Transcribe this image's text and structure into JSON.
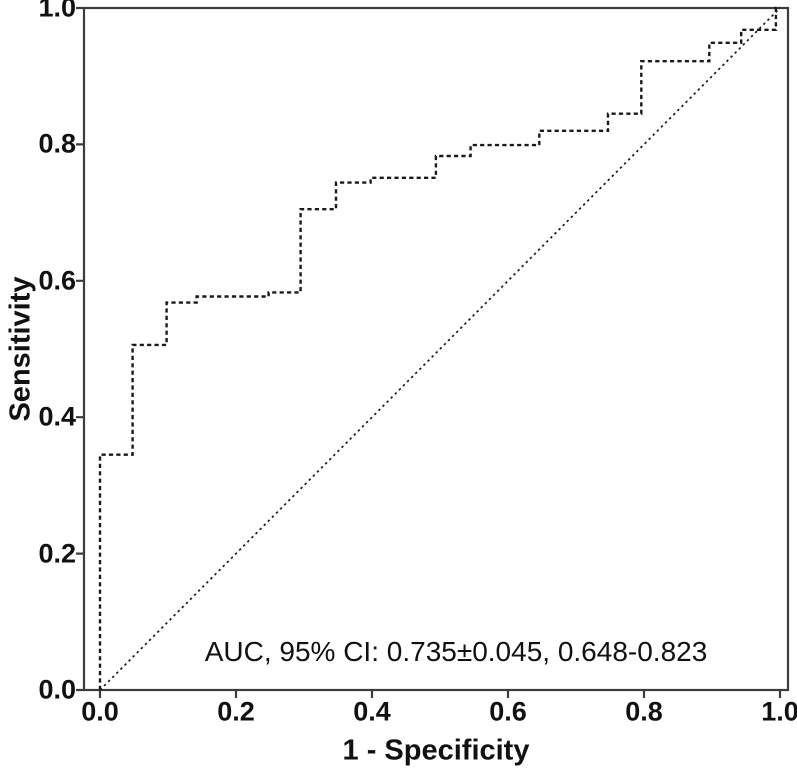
{
  "chart_data": {
    "type": "line",
    "subtype": "roc-curve",
    "title": "",
    "xlabel": "1 - Specificity",
    "ylabel": "Sensitivity",
    "xlim": [
      0.0,
      1.0
    ],
    "ylim": [
      0.0,
      1.0
    ],
    "x_ticks": [
      "0.0",
      "0.2",
      "0.4",
      "0.6",
      "0.8",
      "1.0"
    ],
    "y_ticks": [
      "0.0",
      "0.2",
      "0.4",
      "0.6",
      "0.8",
      "1.0"
    ],
    "grid": false,
    "legend": "none",
    "annotation": "AUC, 95% CI: 0.735±0.045, 0.648-0.823",
    "auc": 0.735,
    "auc_se": 0.045,
    "ci_low": 0.648,
    "ci_high": 0.823,
    "colors": {
      "curve": "#1a1a1a",
      "reference": "#1a1a1a",
      "frame": "#3c3c3c",
      "text": "#111111",
      "background": "#ffffff"
    },
    "series": [
      {
        "name": "ROC curve",
        "style": "dashed",
        "points": [
          [
            0.0,
            0.0
          ],
          [
            0.0,
            0.345
          ],
          [
            0.048,
            0.345
          ],
          [
            0.048,
            0.506
          ],
          [
            0.098,
            0.506
          ],
          [
            0.098,
            0.568
          ],
          [
            0.142,
            0.568
          ],
          [
            0.142,
            0.577
          ],
          [
            0.248,
            0.577
          ],
          [
            0.248,
            0.583
          ],
          [
            0.295,
            0.583
          ],
          [
            0.295,
            0.705
          ],
          [
            0.347,
            0.705
          ],
          [
            0.347,
            0.744
          ],
          [
            0.398,
            0.744
          ],
          [
            0.398,
            0.751
          ],
          [
            0.494,
            0.751
          ],
          [
            0.494,
            0.783
          ],
          [
            0.545,
            0.783
          ],
          [
            0.545,
            0.799
          ],
          [
            0.646,
            0.799
          ],
          [
            0.646,
            0.82
          ],
          [
            0.747,
            0.82
          ],
          [
            0.747,
            0.845
          ],
          [
            0.796,
            0.845
          ],
          [
            0.796,
            0.922
          ],
          [
            0.896,
            0.922
          ],
          [
            0.896,
            0.949
          ],
          [
            0.943,
            0.949
          ],
          [
            0.943,
            0.968
          ],
          [
            0.994,
            0.968
          ],
          [
            0.994,
            1.0
          ],
          [
            1.0,
            1.0
          ]
        ]
      },
      {
        "name": "Reference diagonal",
        "style": "dotted",
        "points": [
          [
            0.0,
            0.0
          ],
          [
            1.0,
            1.0
          ]
        ]
      }
    ]
  }
}
